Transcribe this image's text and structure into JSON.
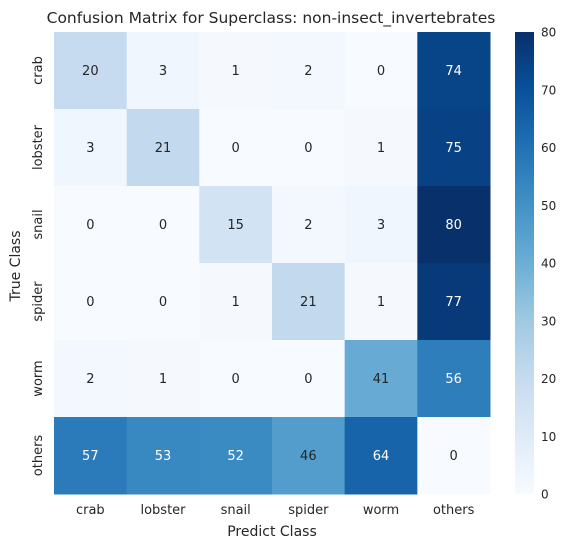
{
  "chart_data": {
    "type": "heatmap",
    "title": "Confusion Matrix for Superclass: non-insect_invertebrates",
    "xlabel": "Predict Class",
    "ylabel": "True Class",
    "x_categories": [
      "crab",
      "lobster",
      "snail",
      "spider",
      "worm",
      "others"
    ],
    "y_categories": [
      "crab",
      "lobster",
      "snail",
      "spider",
      "worm",
      "others"
    ],
    "values": [
      [
        20,
        3,
        1,
        2,
        0,
        74
      ],
      [
        3,
        21,
        0,
        0,
        1,
        75
      ],
      [
        0,
        0,
        15,
        2,
        3,
        80
      ],
      [
        0,
        0,
        1,
        21,
        1,
        77
      ],
      [
        2,
        1,
        0,
        0,
        41,
        56
      ],
      [
        57,
        53,
        52,
        46,
        64,
        0
      ]
    ],
    "colorbar": {
      "range": [
        0,
        80
      ],
      "ticks": [
        0,
        10,
        20,
        30,
        40,
        50,
        60,
        70,
        80
      ],
      "colormap": "Blues"
    }
  }
}
